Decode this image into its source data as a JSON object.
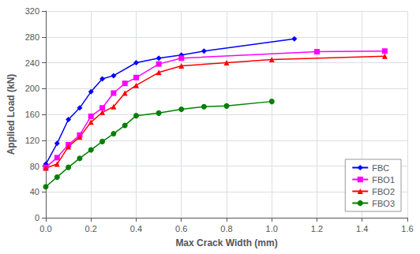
{
  "chart_data": {
    "type": "line",
    "xlabel": "Max Crack Width (mm)",
    "ylabel": "Applied Load (kN)",
    "xlim": [
      0,
      1.6
    ],
    "ylim": [
      0,
      320
    ],
    "xticks": [
      {
        "value": 0,
        "label": "0.0"
      },
      0.2,
      0.4,
      0.6,
      0.8,
      {
        "value": 1,
        "label": "1.0"
      },
      1.2,
      1.4,
      1.6
    ],
    "yticks": [
      0,
      40,
      80,
      120,
      160,
      200,
      240,
      280,
      320
    ],
    "grid": true,
    "legend": "lower right",
    "series": [
      {
        "name": "FBC",
        "color": "#0000FF",
        "marker": "diamond",
        "x": [
          0.0,
          0.05,
          0.1,
          0.15,
          0.2,
          0.25,
          0.3,
          0.4,
          0.5,
          0.6,
          0.7,
          1.1
        ],
        "values": [
          83,
          115,
          152,
          170,
          195,
          215,
          220,
          240,
          247,
          252,
          258,
          277
        ]
      },
      {
        "name": "FBO1",
        "color": "#FF00FF",
        "marker": "square",
        "x": [
          0.0,
          0.05,
          0.1,
          0.15,
          0.2,
          0.25,
          0.3,
          0.35,
          0.4,
          0.5,
          0.6,
          1.2,
          1.5
        ],
        "values": [
          78,
          93,
          113,
          128,
          157,
          170,
          193,
          208,
          217,
          238,
          247,
          257,
          258
        ]
      },
      {
        "name": "FBO2",
        "color": "#FF0000",
        "marker": "triangle",
        "x": [
          0.0,
          0.05,
          0.1,
          0.15,
          0.2,
          0.25,
          0.3,
          0.35,
          0.4,
          0.5,
          0.6,
          0.8,
          1.0,
          1.5
        ],
        "values": [
          77,
          83,
          110,
          125,
          148,
          163,
          172,
          193,
          205,
          225,
          235,
          240,
          245,
          250
        ]
      },
      {
        "name": "FBO3",
        "color": "#008000",
        "marker": "circle",
        "x": [
          0.0,
          0.05,
          0.1,
          0.15,
          0.2,
          0.25,
          0.3,
          0.35,
          0.4,
          0.5,
          0.6,
          0.7,
          0.8,
          1.0
        ],
        "values": [
          48,
          63,
          78,
          92,
          105,
          118,
          130,
          143,
          158,
          162,
          168,
          172,
          173,
          180
        ]
      }
    ]
  }
}
